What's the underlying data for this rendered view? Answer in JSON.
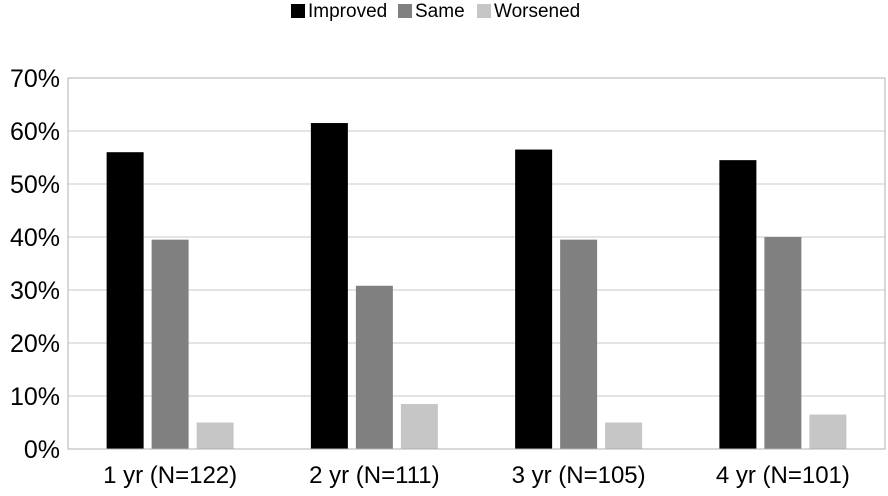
{
  "chart_data": {
    "type": "bar",
    "title": "",
    "xlabel": "",
    "ylabel": "",
    "categories": [
      "1 yr (N=122)",
      "2 yr (N=111)",
      "3 yr (N=105)",
      "4 yr (N=101)"
    ],
    "series": [
      {
        "name": "Improved",
        "color": "#000000",
        "values": [
          56,
          61.5,
          56.5,
          54.5
        ]
      },
      {
        "name": "Same",
        "color": "#808080",
        "values": [
          39.5,
          30.8,
          39.5,
          40
        ]
      },
      {
        "name": "Worsened",
        "color": "#c6c6c6",
        "values": [
          5,
          8.5,
          5,
          6.5
        ]
      }
    ],
    "ylim": [
      0,
      70
    ],
    "yticks": [
      "0%",
      "10%",
      "20%",
      "30%",
      "40%",
      "50%",
      "60%",
      "70%"
    ],
    "grid": true,
    "legend": "top-center"
  }
}
